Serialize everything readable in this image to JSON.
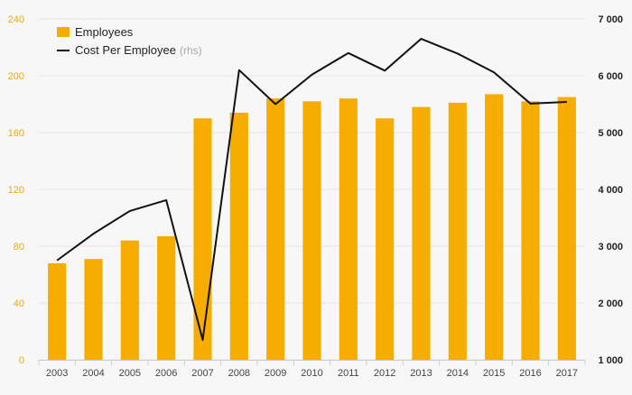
{
  "colors": {
    "bar": "#f7ac00",
    "line": "#111111",
    "left_tick": "#f2a900",
    "grid": "#e6e6e6",
    "background": "#f7f7f7"
  },
  "chart_data": {
    "type": "bar",
    "categories": [
      "2003",
      "2004",
      "2005",
      "2006",
      "2007",
      "2008",
      "2009",
      "2010",
      "2011",
      "2012",
      "2013",
      "2014",
      "2015",
      "2016",
      "2017"
    ],
    "series": [
      {
        "name": "Employees",
        "type": "bar",
        "axis": "left",
        "values": [
          68,
          71,
          84,
          87,
          170,
          174,
          184,
          182,
          184,
          170,
          178,
          181,
          187,
          182,
          185
        ]
      },
      {
        "name": "Cost Per Employee",
        "name_suffix": "(rhs)",
        "type": "line",
        "axis": "right",
        "values": [
          2750,
          3220,
          3620,
          3810,
          1350,
          6100,
          5500,
          6020,
          6400,
          6090,
          6650,
          6390,
          6060,
          5510,
          5540
        ]
      }
    ],
    "y_left": {
      "range": [
        0,
        240
      ],
      "ticks": [
        0,
        40,
        80,
        120,
        160,
        200,
        240
      ],
      "tick_labels": [
        "0",
        "40",
        "80",
        "120",
        "160",
        "200",
        "240"
      ]
    },
    "y_right": {
      "range": [
        1000,
        7000
      ],
      "ticks": [
        1000,
        2000,
        3000,
        4000,
        5000,
        6000,
        7000
      ],
      "tick_labels": [
        "1 000",
        "2 000",
        "3 000",
        "4 000",
        "5 000",
        "6 000",
        "7 000"
      ]
    },
    "grid": true,
    "legend_position": "top-left"
  }
}
